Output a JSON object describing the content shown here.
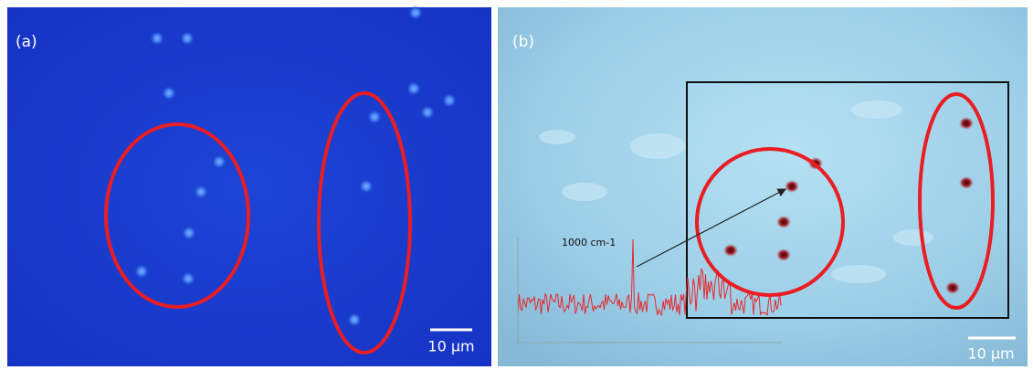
{
  "panels": [
    {
      "label": "(a)",
      "scale_bar": "10 μm"
    },
    {
      "label": "(b)",
      "scale_bar": "10 μm",
      "annotation": "1000 cm-1"
    }
  ]
}
